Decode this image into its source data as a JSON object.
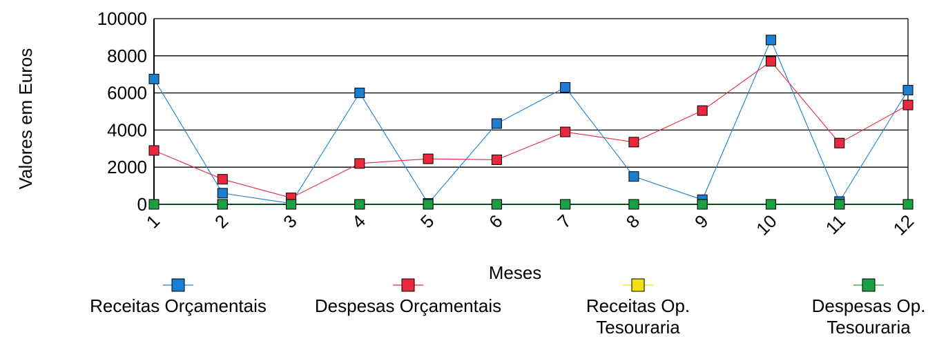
{
  "chart_data": {
    "type": "line",
    "title": "",
    "xlabel": "Meses",
    "ylabel": "Valores em Euros",
    "categories": [
      "1",
      "2",
      "3",
      "4",
      "5",
      "6",
      "7",
      "8",
      "9",
      "10",
      "11",
      "12"
    ],
    "ylim": [
      0,
      10000
    ],
    "yticks": [
      "0",
      "2000",
      "4000",
      "6000",
      "8000",
      "10000"
    ],
    "grid": true,
    "legend_position": "bottom",
    "series": [
      {
        "name": "Receitas Orçamentais",
        "color": "#1a7fd0",
        "values": [
          6750,
          600,
          50,
          6000,
          50,
          4350,
          6300,
          1500,
          250,
          8850,
          150,
          6150
        ]
      },
      {
        "name": "Despesas Orçamentais",
        "color": "#e8283c",
        "values": [
          2900,
          1350,
          350,
          2200,
          2450,
          2400,
          3900,
          3350,
          5050,
          7700,
          3300,
          5350
        ]
      },
      {
        "name": "Receitas Op. Tesouraria",
        "color": "#f0e010",
        "values": [
          0,
          0,
          0,
          0,
          0,
          0,
          0,
          0,
          0,
          0,
          0,
          0
        ]
      },
      {
        "name": "Despesas Op. Tesouraria",
        "color": "#1aa040",
        "values": [
          0,
          0,
          0,
          0,
          0,
          0,
          0,
          0,
          0,
          0,
          0,
          0
        ]
      }
    ]
  }
}
